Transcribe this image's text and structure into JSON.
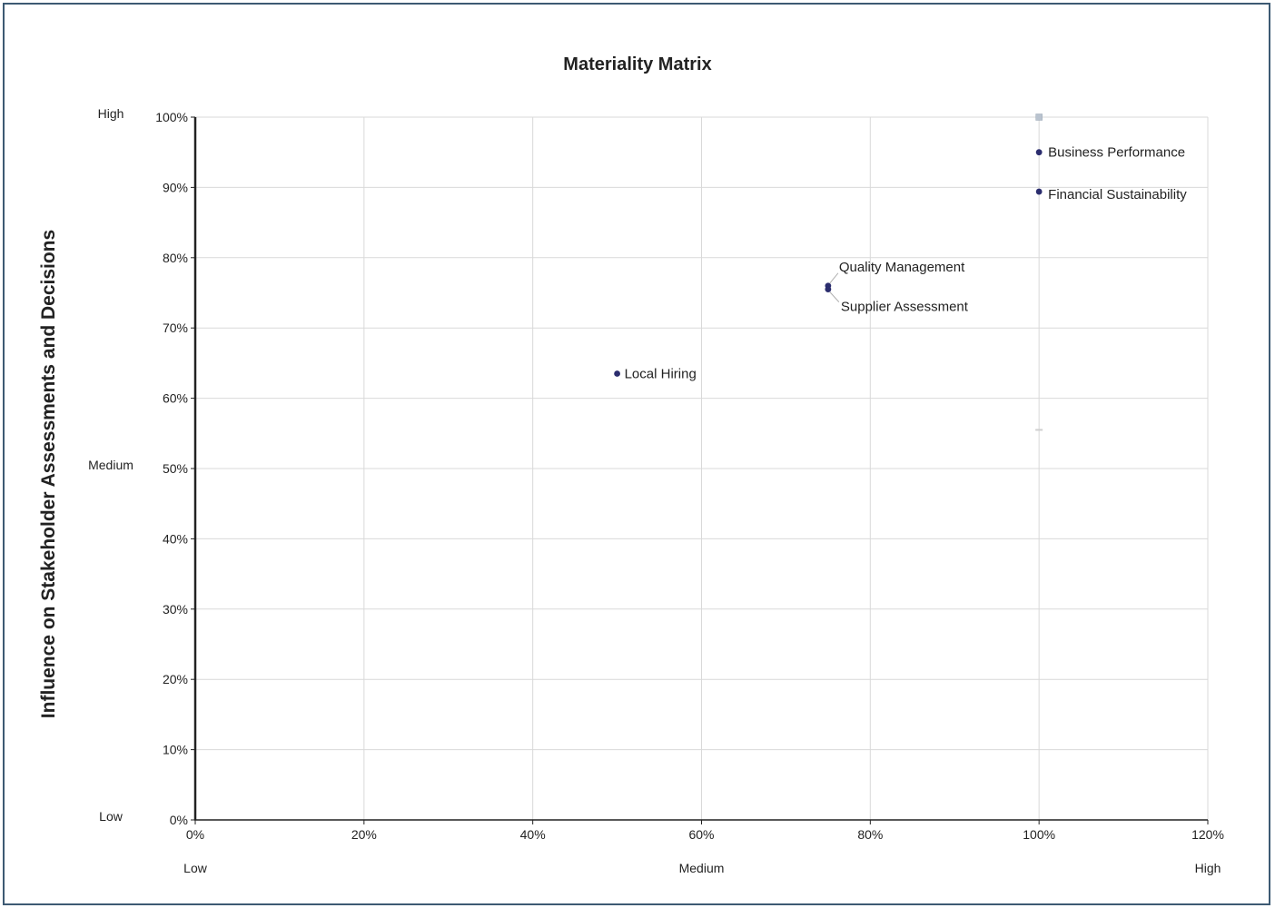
{
  "chart_data": {
    "type": "scatter",
    "title": "Materiality Matrix",
    "ylabel": "Influence on Stakeholder Assessments and Decisions",
    "xlabel": "",
    "xlim": [
      0,
      120
    ],
    "ylim": [
      0,
      100
    ],
    "x_ticks": [
      0,
      20,
      40,
      60,
      80,
      100,
      120
    ],
    "y_ticks": [
      0,
      10,
      20,
      30,
      40,
      50,
      60,
      70,
      80,
      90,
      100
    ],
    "tick_suffix": "%",
    "grid": true,
    "x_level_labels": [
      {
        "label": "Low",
        "x": 0
      },
      {
        "label": "Medium",
        "x": 60
      },
      {
        "label": "High",
        "x": 120
      }
    ],
    "y_level_labels": [
      {
        "label": "High",
        "y": 100
      },
      {
        "label": "Medium",
        "y": 50
      },
      {
        "label": "Low",
        "y": 0
      }
    ],
    "points": [
      {
        "label": "Business Performance",
        "x": 100,
        "y": 95
      },
      {
        "label": "Financial Sustainability",
        "x": 100,
        "y": 89.4
      },
      {
        "label": "Quality Management",
        "x": 75,
        "y": 76
      },
      {
        "label": "Supplier Assessment",
        "x": 75,
        "y": 75.5
      },
      {
        "label": "Local Hiring",
        "x": 50,
        "y": 63.5
      }
    ],
    "marker_color": "#2b2d6e",
    "grid_color": "#d9d9d9",
    "axis_color": "#222222"
  }
}
